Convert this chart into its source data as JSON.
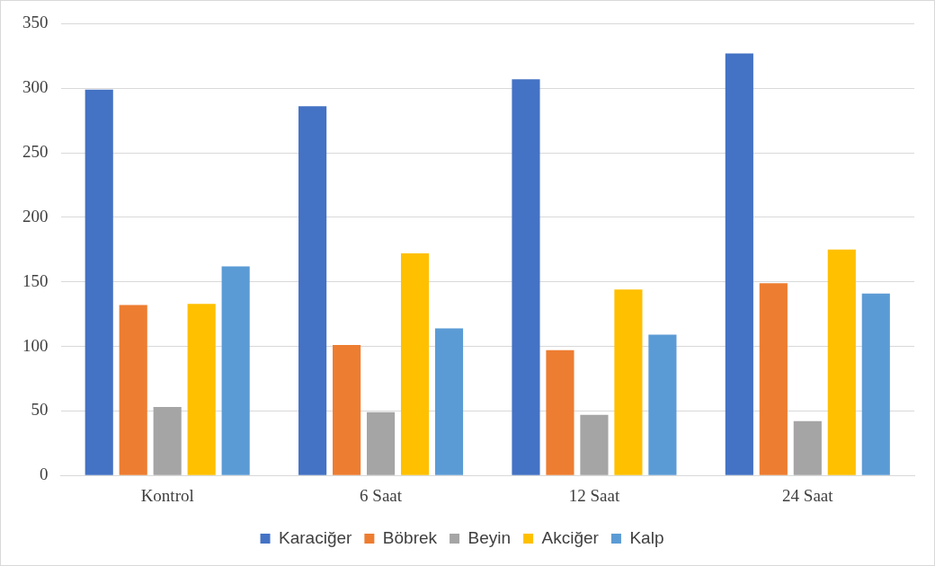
{
  "chart_data": {
    "type": "bar",
    "categories": [
      "Kontrol",
      "6 Saat",
      "12 Saat",
      "24 Saat"
    ],
    "series": [
      {
        "name": "Karaciğer",
        "color": "#4472c4",
        "values": [
          299,
          286,
          307,
          327
        ]
      },
      {
        "name": "Böbrek",
        "color": "#ed7d31",
        "values": [
          132,
          101,
          97,
          149
        ]
      },
      {
        "name": "Beyin",
        "color": "#a5a5a5",
        "values": [
          53,
          49,
          47,
          42
        ]
      },
      {
        "name": "Akciğer",
        "color": "#ffc000",
        "values": [
          133,
          172,
          144,
          175
        ]
      },
      {
        "name": "Kalp",
        "color": "#5b9bd5",
        "values": [
          162,
          114,
          109,
          141
        ]
      }
    ],
    "ylim": [
      0,
      350
    ],
    "yticks": [
      0,
      50,
      100,
      150,
      200,
      250,
      300,
      350
    ],
    "grid": "y",
    "legend": "bottom"
  }
}
